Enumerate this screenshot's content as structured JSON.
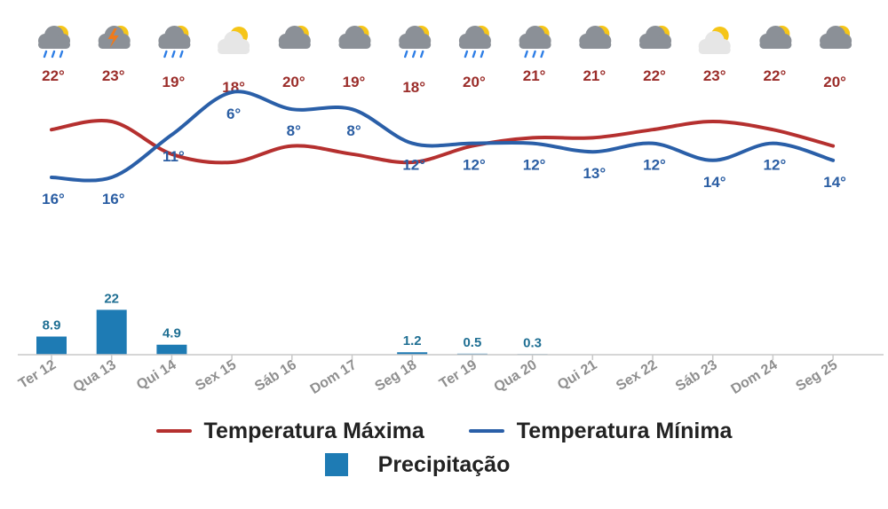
{
  "colors": {
    "max_line": "#b5302f",
    "min_line": "#2a5fa8",
    "bar": "#1e7bb4",
    "axis": "#c8c8c8",
    "tick_text": "#8f8f8f",
    "sun": "#f5c518",
    "cloud": "#8b9097",
    "rain": "#2e7ee6",
    "bolt": "#f07a1a"
  },
  "icons": [
    "cloud-sun-rain-icon",
    "cloud-lightning-icon",
    "cloud-sun-rain-icon",
    "sun-cloud-light-icon",
    "cloud-sun-icon",
    "cloud-sun-icon",
    "cloud-sun-rain-icon",
    "cloud-sun-rain-icon",
    "cloud-sun-rain-icon",
    "cloud-sun-icon",
    "cloud-sun-icon",
    "sun-cloud-light-icon",
    "cloud-sun-icon",
    "cloud-sun-icon"
  ],
  "chart_data": {
    "type": "line",
    "categories": [
      "Ter 12",
      "Qua 13",
      "Qui 14",
      "Sex 15",
      "Sáb 16",
      "Dom 17",
      "Seg 18",
      "Ter 19",
      "Qua 20",
      "Qui 21",
      "Sex 22",
      "Sáb 23",
      "Dom 24",
      "Seg 25"
    ],
    "series": [
      {
        "name": "Temperatura Máxima",
        "values": [
          22,
          23,
          19,
          18,
          20,
          19,
          18,
          20,
          21,
          21,
          22,
          23,
          22,
          20
        ],
        "value_labels": [
          "22°",
          "23°",
          "19°",
          "18°",
          "20°",
          "19°",
          "18°",
          "20°",
          "21°",
          "21°",
          "22°",
          "23°",
          "22°",
          "20°"
        ]
      },
      {
        "name": "Temperatura Mínima",
        "values": [
          16,
          16,
          11,
          6,
          8,
          8,
          12,
          12,
          12,
          13,
          12,
          14,
          12,
          14
        ],
        "value_labels": [
          "16°",
          "16°",
          "11°",
          "6°",
          "8°",
          "8°",
          "12°",
          "12°",
          "12°",
          "13°",
          "12°",
          "14°",
          "12°",
          "14°"
        ]
      },
      {
        "name": "Precipitação",
        "type": "bar",
        "values": [
          8.9,
          22,
          4.9,
          0,
          0,
          0,
          1.2,
          0.5,
          0.3,
          0,
          0,
          0,
          0,
          0
        ],
        "value_labels": [
          "8.9",
          "22",
          "4.9",
          "",
          "",
          "",
          "1.2",
          "0.5",
          "0.3",
          "",
          "",
          "",
          "",
          ""
        ]
      }
    ],
    "legend": {
      "max_label": "Temperatura Máxima",
      "min_label": "Temperatura Mínima",
      "precip_label": "Precipitação",
      "placement": "bottom"
    }
  }
}
